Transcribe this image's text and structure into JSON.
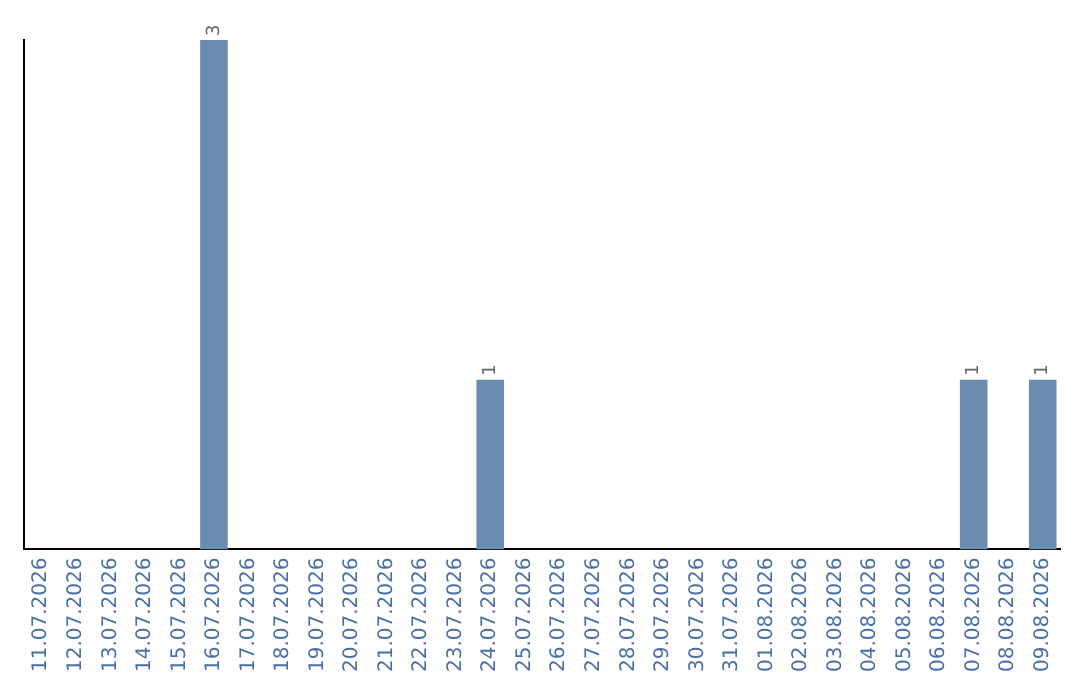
{
  "chart_data": {
    "type": "bar",
    "categories": [
      "11.07.2026",
      "12.07.2026",
      "13.07.2026",
      "14.07.2026",
      "15.07.2026",
      "16.07.2026",
      "17.07.2026",
      "18.07.2026",
      "19.07.2026",
      "20.07.2026",
      "21.07.2026",
      "22.07.2026",
      "23.07.2026",
      "24.07.2026",
      "25.07.2026",
      "26.07.2026",
      "27.07.2026",
      "28.07.2026",
      "29.07.2026",
      "30.07.2026",
      "31.07.2026",
      "01.08.2026",
      "02.08.2026",
      "03.08.2026",
      "04.08.2026",
      "05.08.2026",
      "06.08.2026",
      "07.08.2026",
      "08.08.2026",
      "09.08.2026"
    ],
    "values": [
      0,
      0,
      0,
      0,
      0,
      3,
      0,
      0,
      0,
      0,
      0,
      0,
      0,
      1,
      0,
      0,
      0,
      0,
      0,
      0,
      0,
      0,
      0,
      0,
      0,
      0,
      0,
      1,
      0,
      1
    ],
    "color": "#6a8caf",
    "value_labels": [
      null,
      null,
      null,
      null,
      null,
      "3",
      null,
      null,
      null,
      null,
      null,
      null,
      null,
      "1",
      null,
      null,
      null,
      null,
      null,
      null,
      null,
      null,
      null,
      null,
      null,
      null,
      null,
      "1",
      null,
      "1"
    ],
    "grid": false,
    "legend": false
  }
}
